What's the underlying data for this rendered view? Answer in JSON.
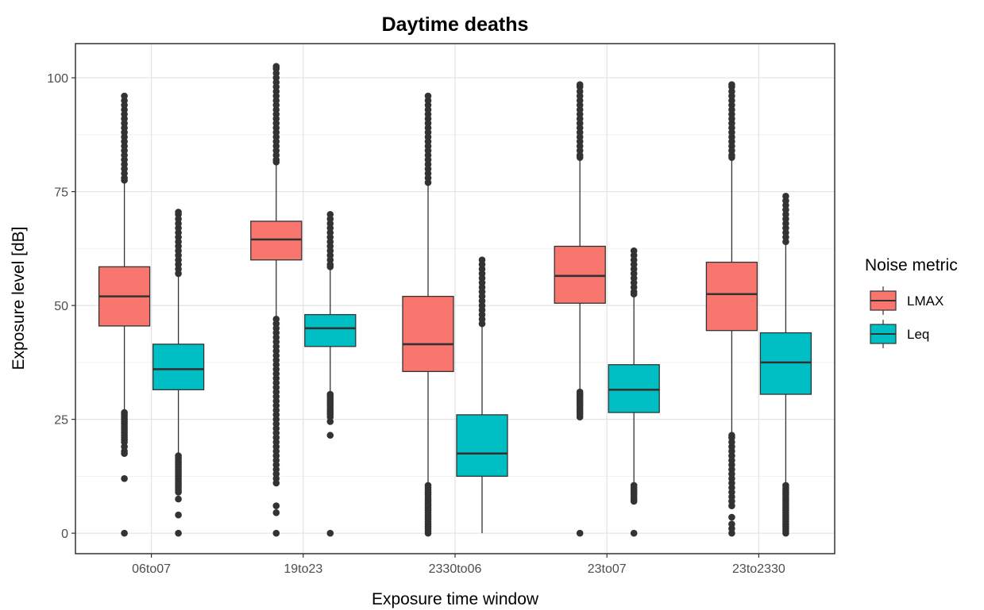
{
  "chart_data": {
    "type": "boxplot",
    "title": "Daytime deaths",
    "xlabel": "Exposure time window",
    "ylabel": "Exposure level [dB]",
    "ylim": [
      -4.5,
      107.5
    ],
    "yticks": [
      0,
      25,
      50,
      75,
      100
    ],
    "categories": [
      "06to07",
      "19to23",
      "2330to06",
      "23to07",
      "23to2330"
    ],
    "grid": true,
    "legend": {
      "title": "Noise metric",
      "position": "right",
      "entries": [
        "LMAX",
        "Leq"
      ]
    },
    "series": [
      {
        "name": "LMAX",
        "color": "#F8766D",
        "boxes": [
          {
            "category": "06to07",
            "q1": 45.5,
            "median": 52,
            "q3": 58.5,
            "whisker_low": 27,
            "whisker_high": 77,
            "outliers": [
              0,
              12,
              17.5,
              18,
              19,
              20,
              20.5,
              21,
              21.5,
              22,
              22.5,
              23,
              23.5,
              24,
              24.5,
              25,
              25.5,
              26,
              26.5,
              77.5,
              78,
              79,
              80,
              81,
              82,
              83,
              84,
              85,
              86,
              87,
              88,
              89,
              90,
              91,
              92,
              93,
              94,
              95,
              96
            ]
          },
          {
            "category": "19to23",
            "q1": 60,
            "median": 64.5,
            "q3": 68.5,
            "whisker_low": 47.5,
            "whisker_high": 81,
            "outliers": [
              0,
              4.5,
              6,
              11,
              12,
              13,
              14,
              15,
              16,
              17,
              18,
              19,
              20,
              21,
              22,
              23,
              24,
              25,
              26,
              27,
              28,
              29,
              30,
              31,
              32,
              33,
              34,
              35,
              36,
              37,
              38,
              39,
              40,
              41,
              42,
              43,
              44,
              45,
              46,
              47,
              81.5,
              82,
              83,
              84,
              85,
              86,
              87,
              88,
              89,
              90,
              91,
              92,
              93,
              94,
              95,
              96,
              97,
              98,
              99,
              100,
              101,
              102,
              102.5
            ]
          },
          {
            "category": "2330to06",
            "q1": 35.5,
            "median": 41.5,
            "q3": 52,
            "whisker_low": 11,
            "whisker_high": 76.5,
            "outliers": [
              0,
              0.5,
              1,
              1.5,
              2,
              2.5,
              3,
              3.5,
              4,
              4.5,
              5,
              5.5,
              6,
              6.5,
              7,
              7.5,
              8,
              8.5,
              9,
              9.5,
              10,
              10.5,
              77,
              78,
              79,
              80,
              81,
              82,
              83,
              84,
              85,
              86,
              87,
              88,
              89,
              90,
              91,
              92,
              93,
              94,
              95,
              96
            ]
          },
          {
            "category": "23to07",
            "q1": 50.5,
            "median": 56.5,
            "q3": 63,
            "whisker_low": 31.5,
            "whisker_high": 82,
            "outliers": [
              0,
              25.5,
              26,
              26.5,
              27,
              27.5,
              28,
              28.5,
              29,
              29.5,
              30,
              30.5,
              31,
              82.5,
              83,
              84,
              85,
              86,
              87,
              88,
              89,
              90,
              91,
              92,
              93,
              94,
              95,
              96,
              97,
              98,
              98.5
            ]
          },
          {
            "category": "23to2330",
            "q1": 44.5,
            "median": 52.5,
            "q3": 59.5,
            "whisker_low": 22,
            "whisker_high": 82,
            "outliers": [
              0,
              1,
              2,
              3.5,
              6,
              7,
              8,
              9,
              10,
              11,
              12,
              13,
              14,
              15,
              16,
              17,
              18,
              19,
              20,
              21,
              21.5,
              82.5,
              83,
              84,
              85,
              86,
              87,
              88,
              89,
              90,
              91,
              92,
              93,
              94,
              95,
              96,
              97,
              98,
              98.5
            ]
          }
        ]
      },
      {
        "name": "Leq",
        "color": "#00BFC4",
        "boxes": [
          {
            "category": "06to07",
            "q1": 31.5,
            "median": 36,
            "q3": 41.5,
            "whisker_low": 17.5,
            "whisker_high": 56.5,
            "outliers": [
              0,
              4,
              7.5,
              9,
              9.5,
              10,
              10.5,
              11,
              11.5,
              12,
              12.5,
              13,
              13.5,
              14,
              14.5,
              15,
              15.5,
              16,
              16.5,
              17,
              57,
              58,
              59,
              60,
              61,
              62,
              63,
              64,
              65,
              66,
              67,
              68,
              69,
              70,
              70.5
            ]
          },
          {
            "category": "19to23",
            "q1": 41,
            "median": 45,
            "q3": 48,
            "whisker_low": 31,
            "whisker_high": 58,
            "outliers": [
              0,
              21.5,
              24.5,
              25.5,
              26,
              26.5,
              27,
              27.5,
              28,
              28.5,
              29,
              29.5,
              30,
              30.5,
              58.5,
              59,
              60,
              61,
              62,
              63,
              64,
              65,
              66,
              67,
              68,
              69,
              70
            ]
          },
          {
            "category": "2330to06",
            "q1": 12.5,
            "median": 17.5,
            "q3": 26,
            "whisker_low": 0,
            "whisker_high": 45.5,
            "outliers": [
              46,
              47,
              48,
              49,
              50,
              51,
              52,
              53,
              54,
              55,
              56,
              57,
              58,
              59,
              60
            ]
          },
          {
            "category": "23to07",
            "q1": 26.5,
            "median": 31.5,
            "q3": 37,
            "whisker_low": 11,
            "whisker_high": 52,
            "outliers": [
              0,
              7,
              7.5,
              8,
              8.5,
              9,
              9.5,
              10,
              10.5,
              52.5,
              53,
              54,
              55,
              56,
              57,
              58,
              59,
              60,
              61,
              62
            ]
          },
          {
            "category": "23to2330",
            "q1": 30.5,
            "median": 37.5,
            "q3": 44,
            "whisker_low": 11,
            "whisker_high": 63.5,
            "outliers": [
              0,
              0.5,
              1,
              1.5,
              2,
              2.5,
              3,
              3.5,
              4,
              4.5,
              5,
              5.5,
              6,
              6.5,
              7,
              7.5,
              8,
              8.5,
              9,
              9.5,
              10,
              10.5,
              64,
              65,
              66,
              67,
              68,
              69,
              70,
              71,
              72,
              73,
              74
            ]
          }
        ]
      }
    ]
  }
}
